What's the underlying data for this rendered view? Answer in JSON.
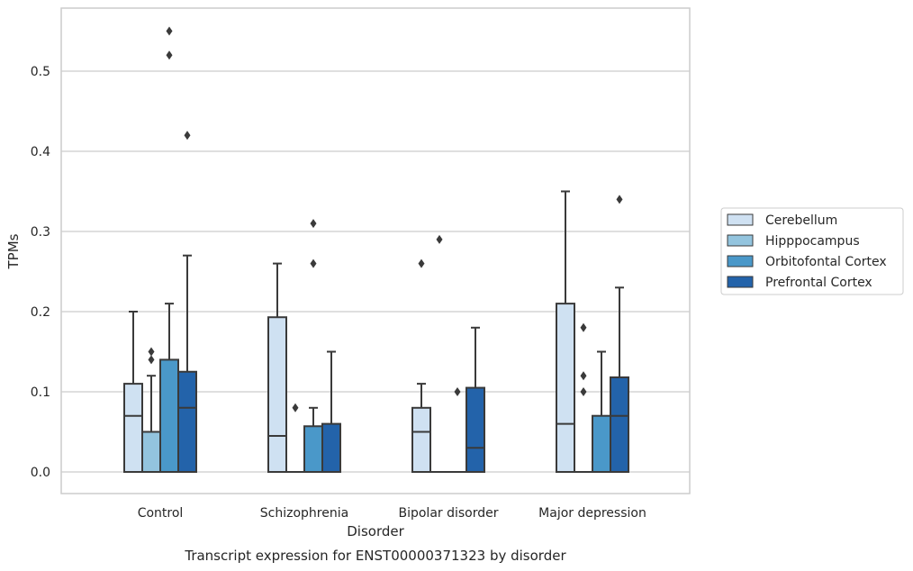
{
  "chart_data": {
    "type": "box",
    "caption": "Transcript expression for ENST00000371323 by disorder",
    "xlabel": "Disorder",
    "ylabel": "TPMs",
    "categories": [
      "Control",
      "Schizophrenia",
      "Bipolar disorder",
      "Major depression"
    ],
    "yticks": [
      "0.0",
      "0.1",
      "0.2",
      "0.3",
      "0.4",
      "0.5"
    ],
    "ylim": [
      -0.026,
      0.58
    ],
    "grid": "horizontal",
    "legend_placement": "right",
    "series": [
      {
        "name": "Cerebellum",
        "color": "#cfe1f2",
        "boxes": [
          {
            "category": "Control",
            "q1": 0.0,
            "median": 0.07,
            "q3": 0.11,
            "whisker_low": 0.0,
            "whisker_high": 0.2,
            "outliers": []
          },
          {
            "category": "Schizophrenia",
            "q1": 0.0,
            "median": 0.045,
            "q3": 0.193,
            "whisker_low": 0.0,
            "whisker_high": 0.26,
            "outliers": []
          },
          {
            "category": "Bipolar disorder",
            "q1": 0.0,
            "median": 0.05,
            "q3": 0.08,
            "whisker_low": 0.0,
            "whisker_high": 0.11,
            "outliers": [
              0.26
            ]
          },
          {
            "category": "Major depression",
            "q1": 0.0,
            "median": 0.06,
            "q3": 0.21,
            "whisker_low": 0.0,
            "whisker_high": 0.35,
            "outliers": []
          }
        ]
      },
      {
        "name": "Hipppocampus",
        "color": "#93c4de",
        "boxes": [
          {
            "category": "Control",
            "q1": 0.0,
            "median": 0.05,
            "q3": 0.05,
            "whisker_low": 0.0,
            "whisker_high": 0.12,
            "outliers": [
              0.14,
              0.15
            ]
          },
          {
            "category": "Schizophrenia",
            "q1": 0.0,
            "median": 0.0,
            "q3": 0.0,
            "whisker_low": 0.0,
            "whisker_high": 0.0,
            "outliers": [
              0.08
            ]
          },
          {
            "category": "Bipolar disorder",
            "q1": 0.0,
            "median": 0.0,
            "q3": 0.0,
            "whisker_low": 0.0,
            "whisker_high": 0.0,
            "outliers": [
              0.29
            ]
          },
          {
            "category": "Major depression",
            "q1": 0.0,
            "median": 0.0,
            "q3": 0.0,
            "whisker_low": 0.0,
            "whisker_high": 0.0,
            "outliers": [
              0.1,
              0.12,
              0.18
            ]
          }
        ]
      },
      {
        "name": "Orbitofontal Cortex",
        "color": "#4a98c9",
        "boxes": [
          {
            "category": "Control",
            "q1": 0.0,
            "median": 0.14,
            "q3": 0.14,
            "whisker_low": 0.0,
            "whisker_high": 0.21,
            "outliers": [
              0.52,
              0.55
            ]
          },
          {
            "category": "Schizophrenia",
            "q1": 0.0,
            "median": 0.057,
            "q3": 0.057,
            "whisker_low": 0.0,
            "whisker_high": 0.08,
            "outliers": [
              0.26,
              0.31
            ]
          },
          {
            "category": "Bipolar disorder",
            "q1": 0.0,
            "median": 0.0,
            "q3": 0.0,
            "whisker_low": 0.0,
            "whisker_high": 0.0,
            "outliers": [
              0.1
            ]
          },
          {
            "category": "Major depression",
            "q1": 0.0,
            "median": 0.07,
            "q3": 0.07,
            "whisker_low": 0.0,
            "whisker_high": 0.15,
            "outliers": []
          }
        ]
      },
      {
        "name": "Prefrontal Cortex",
        "color": "#2363aa",
        "boxes": [
          {
            "category": "Control",
            "q1": 0.0,
            "median": 0.08,
            "q3": 0.125,
            "whisker_low": 0.0,
            "whisker_high": 0.27,
            "outliers": [
              0.42
            ]
          },
          {
            "category": "Schizophrenia",
            "q1": 0.0,
            "median": 0.06,
            "q3": 0.06,
            "whisker_low": 0.0,
            "whisker_high": 0.15,
            "outliers": []
          },
          {
            "category": "Bipolar disorder",
            "q1": 0.0,
            "median": 0.03,
            "q3": 0.105,
            "whisker_low": 0.0,
            "whisker_high": 0.18,
            "outliers": []
          },
          {
            "category": "Major depression",
            "q1": 0.0,
            "median": 0.07,
            "q3": 0.118,
            "whisker_low": 0.0,
            "whisker_high": 0.23,
            "outliers": [
              0.34
            ]
          }
        ]
      }
    ]
  }
}
